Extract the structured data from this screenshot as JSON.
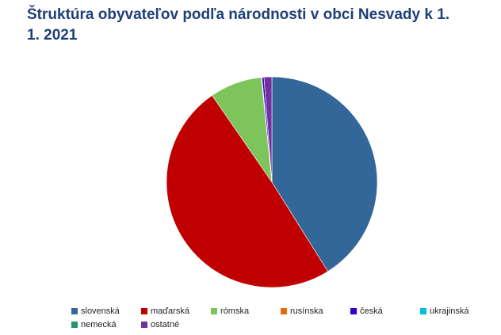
{
  "chart_data": {
    "type": "pie",
    "title": "Štruktúra obyvateľov podľa národnosti v obci Nesvady k 1. 1. 2021",
    "categories": [
      "slovenská",
      "maďarská",
      "rómska",
      "rusínska",
      "česká",
      "ukrajinská",
      "nemecká",
      "ostatné"
    ],
    "values": [
      41.1,
      49.3,
      8.0,
      0.1,
      0.3,
      0,
      0,
      1.2
    ],
    "colors": [
      "#336699",
      "#c00000",
      "#7dc45a",
      "#e46c0a",
      "#3300cc",
      "#00c0e0",
      "#2a9070",
      "#7030a0"
    ],
    "legend": "bottom"
  }
}
